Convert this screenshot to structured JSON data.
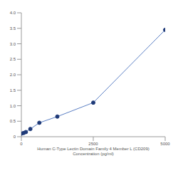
{
  "chart_data": {
    "type": "line",
    "xlabel": [
      "Human C-Type Lectin Domain Family 4 Member L (CD209)",
      "Concentration (pg/ml)"
    ],
    "x": [
      0,
      78,
      156,
      312,
      625,
      1250,
      2500,
      5000
    ],
    "values": [
      0.1,
      0.12,
      0.15,
      0.25,
      0.45,
      0.65,
      1.1,
      3.45
    ],
    "color": "#5b7fc4",
    "marker": "circle",
    "xlim": [
      0,
      5000
    ],
    "xticks": [
      0,
      2500,
      5000
    ],
    "ylim": [
      0,
      4
    ],
    "yticks": [
      0,
      0.5,
      {
        "value": 1,
        "label": "1.0"
      },
      1.5,
      {
        "value": 2,
        "label": "2.0"
      },
      2.5,
      {
        "value": 3,
        "label": "3.0"
      },
      3.5,
      {
        "value": 4,
        "label": "4.0"
      }
    ],
    "grid": false
  }
}
